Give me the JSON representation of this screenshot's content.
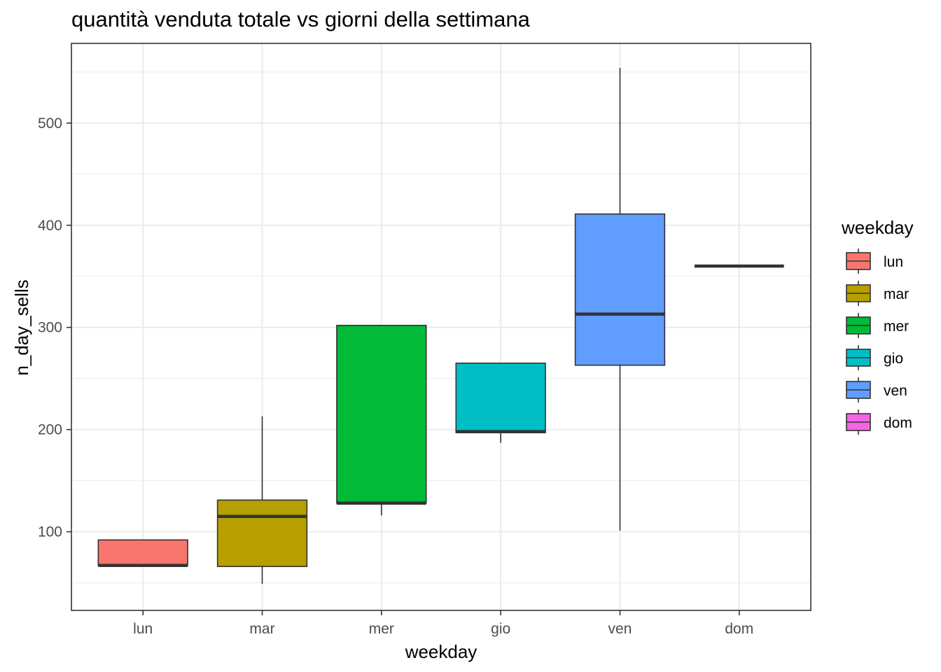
{
  "chart_data": {
    "type": "boxplot",
    "title": "quantità venduta totale vs giorni della settimana",
    "xlabel": "weekday",
    "ylabel": "n_day_sells",
    "categories": [
      "lun",
      "mar",
      "mer",
      "gio",
      "ven",
      "dom"
    ],
    "yticks": [
      100,
      200,
      300,
      400,
      500
    ],
    "ylim": [
      23,
      578
    ],
    "grid": true,
    "legend": {
      "title": "weekday",
      "placement": "right",
      "entries": [
        "lun",
        "mar",
        "mer",
        "gio",
        "ven",
        "dom"
      ]
    },
    "series": [
      {
        "category": "lun",
        "color": "#F8766D",
        "min": 67,
        "q1": 67,
        "median": 67,
        "q3": 92,
        "max": 92
      },
      {
        "category": "mar",
        "color": "#B79F00",
        "min": 49,
        "q1": 66,
        "median": 115,
        "q3": 131,
        "max": 213
      },
      {
        "category": "mer",
        "color": "#00BA38",
        "min": 116,
        "q1": 128,
        "median": 128,
        "q3": 302,
        "max": 302
      },
      {
        "category": "gio",
        "color": "#00BFC4",
        "min": 187,
        "q1": 197,
        "median": 198,
        "q3": 265,
        "max": 265
      },
      {
        "category": "ven",
        "color": "#619CFF",
        "min": 101,
        "q1": 263,
        "median": 313,
        "q3": 411,
        "max": 554
      },
      {
        "category": "dom",
        "color": "#F564E3",
        "min": 360,
        "q1": 360,
        "median": 360,
        "q3": 360,
        "max": 360
      }
    ]
  }
}
